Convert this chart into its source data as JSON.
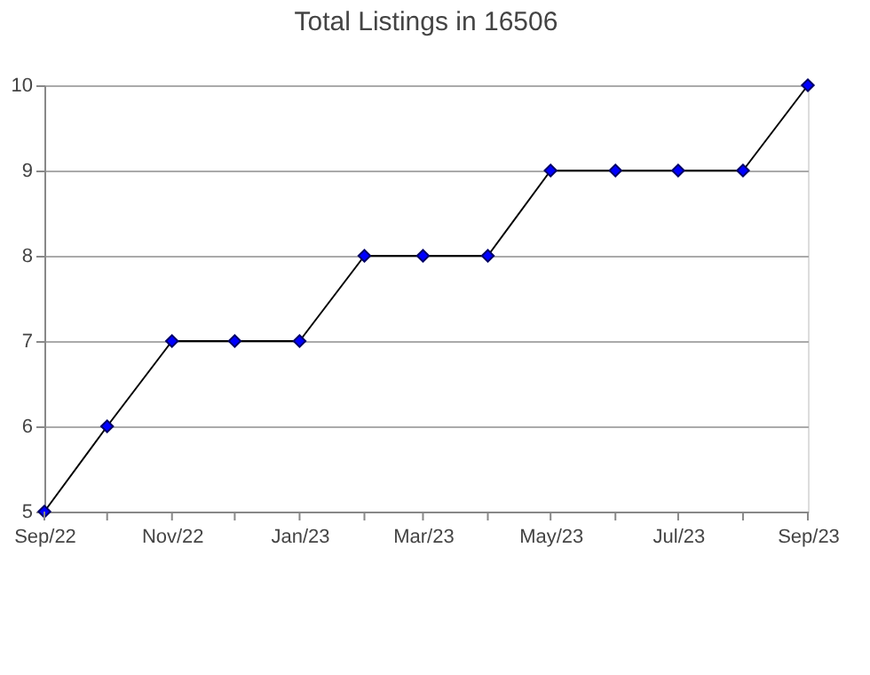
{
  "chart_data": {
    "type": "line",
    "title": "Total Listings in 16506",
    "x": [
      "2022-09",
      "2022-10",
      "2022-11",
      "2022-12",
      "2023-01",
      "2023-02",
      "2023-03",
      "2023-04",
      "2023-05",
      "2023-06",
      "2023-07",
      "2023-08",
      "2023-09"
    ],
    "series": [
      {
        "color": "#000000",
        "values": [
          5,
          6,
          7,
          7,
          7,
          8,
          8,
          8,
          9,
          9,
          9,
          9,
          10
        ]
      }
    ],
    "xlim": [
      "2022-09",
      "2023-09"
    ],
    "xticks": [
      {
        "value": "2022-09",
        "label": "Sep/22"
      },
      {
        "value": "2022-10",
        "label": null
      },
      {
        "value": "2022-11",
        "label": "Nov/22"
      },
      {
        "value": "2022-12",
        "label": null
      },
      {
        "value": "2023-01",
        "label": "Jan/23"
      },
      {
        "value": "2023-02",
        "label": null
      },
      {
        "value": "2023-03",
        "label": "Mar/23"
      },
      {
        "value": "2023-04",
        "label": null
      },
      {
        "value": "2023-05",
        "label": "May/23"
      },
      {
        "value": "2023-06",
        "label": null
      },
      {
        "value": "2023-07",
        "label": "Jul/23"
      },
      {
        "value": "2023-08",
        "label": null
      },
      {
        "value": "2023-09",
        "label": "Sep/23"
      }
    ],
    "ylim": [
      5,
      10
    ],
    "yticks": [
      5,
      6,
      7,
      8,
      9,
      10
    ],
    "grid": "y",
    "marker": "diamond",
    "line_style": "solid"
  }
}
